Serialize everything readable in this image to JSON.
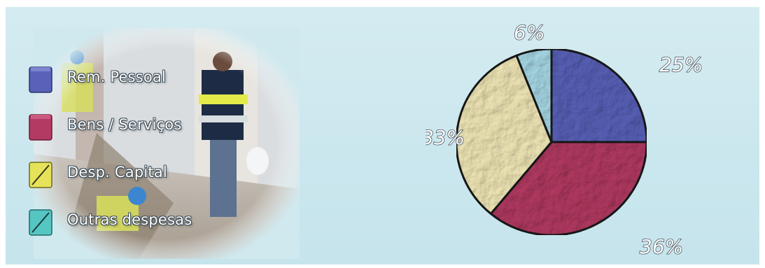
{
  "chart_data": {
    "type": "pie",
    "categories": [
      "Rem. Pessoal",
      "Bens / Serviços",
      "Desp. Capital",
      "Outras despesas"
    ],
    "values": [
      25,
      36,
      33,
      6
    ],
    "data_labels": [
      "25%",
      "36%",
      "33%",
      "6%"
    ],
    "colors": [
      "#5961b8",
      "#b33a62",
      "#f1e8b7",
      "#a7d9e6"
    ],
    "legend_position": "left",
    "title": "",
    "grid": false
  }
}
